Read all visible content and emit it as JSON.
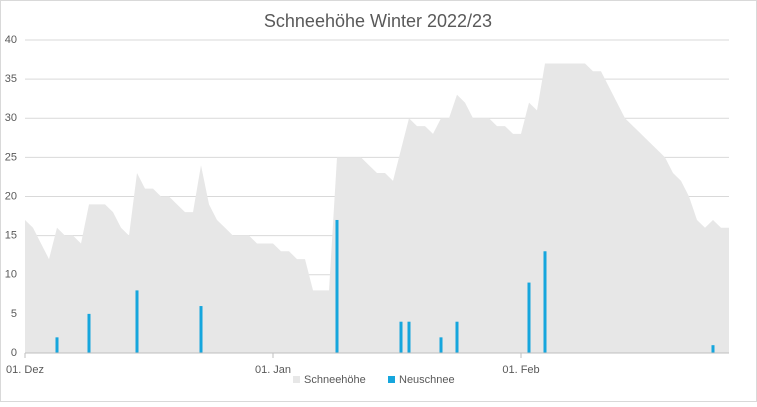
{
  "chart_data": {
    "type": "area",
    "title": "Schneehöhe Winter 2022/23",
    "categories": [
      "01. Dez",
      null,
      null,
      null,
      null,
      null,
      null,
      null,
      null,
      null,
      null,
      null,
      null,
      null,
      null,
      null,
      null,
      null,
      null,
      null,
      null,
      null,
      null,
      null,
      null,
      null,
      null,
      null,
      null,
      null,
      null,
      "01. Jan",
      null,
      null,
      null,
      null,
      null,
      null,
      null,
      null,
      null,
      null,
      null,
      null,
      null,
      null,
      null,
      null,
      null,
      null,
      null,
      null,
      null,
      null,
      null,
      null,
      null,
      null,
      null,
      null,
      null,
      null,
      "01. Feb",
      null,
      null,
      null,
      null,
      null,
      null,
      null,
      null,
      null,
      null,
      null,
      null,
      null,
      null,
      null,
      null,
      null,
      null,
      null,
      null,
      null,
      null,
      null,
      null,
      null,
      null
    ],
    "series": [
      {
        "name": "Schneehöhe",
        "type": "area",
        "color": "#e7e7e7",
        "values": [
          17,
          16,
          14,
          12,
          16,
          15,
          15,
          14,
          19,
          19,
          19,
          18,
          16,
          15,
          23,
          21,
          21,
          20,
          20,
          19,
          18,
          18,
          24,
          19,
          17,
          16,
          15,
          15,
          15,
          14,
          14,
          14,
          13,
          13,
          12,
          12,
          8,
          8,
          8,
          25,
          25,
          25,
          25,
          24,
          23,
          23,
          22,
          26,
          30,
          29,
          29,
          28,
          30,
          30,
          33,
          32,
          30,
          30,
          30,
          29,
          29,
          28,
          28,
          32,
          31,
          37,
          37,
          37,
          37,
          37,
          37,
          36,
          36,
          34,
          32,
          30,
          29,
          28,
          27,
          26,
          25,
          23,
          22,
          20,
          17,
          16,
          17,
          16,
          16
        ]
      },
      {
        "name": "Neuschnee",
        "type": "bar",
        "color": "#16a6dd",
        "values": [
          0,
          0,
          0,
          0,
          2,
          0,
          0,
          0,
          5,
          0,
          0,
          0,
          0,
          0,
          8,
          0,
          0,
          0,
          0,
          0,
          0,
          0,
          6,
          0,
          0,
          0,
          0,
          0,
          0,
          0,
          0,
          0,
          0,
          0,
          0,
          0,
          0,
          0,
          0,
          17,
          0,
          0,
          0,
          0,
          0,
          0,
          0,
          4,
          4,
          0,
          0,
          0,
          2,
          0,
          4,
          0,
          0,
          0,
          0,
          0,
          0,
          0,
          0,
          9,
          0,
          13,
          0,
          0,
          0,
          0,
          0,
          0,
          0,
          0,
          0,
          0,
          0,
          0,
          0,
          0,
          0,
          0,
          0,
          0,
          0,
          0,
          1,
          0,
          0
        ]
      }
    ],
    "ylim": [
      0,
      40
    ],
    "yticks": [
      0,
      5,
      10,
      15,
      20,
      25,
      30,
      35,
      40
    ],
    "grid": true,
    "legend": "bottom"
  }
}
